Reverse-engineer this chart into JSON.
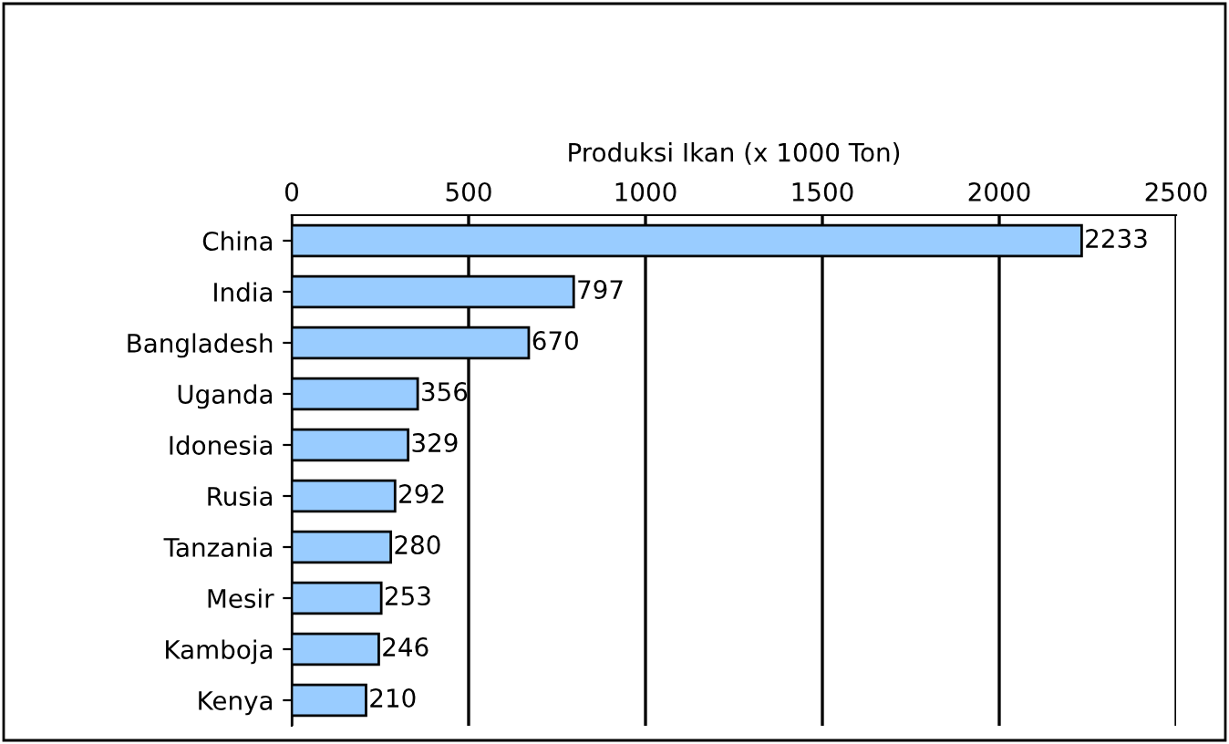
{
  "chart_data": {
    "type": "bar",
    "orientation": "horizontal",
    "xlabel": "Produksi Ikan (x 1000 Ton)",
    "categories": [
      "China",
      "India",
      "Bangladesh",
      "Uganda",
      "Idonesia",
      "Rusia",
      "Tanzania",
      "Mesir",
      "Kamboja",
      "Kenya"
    ],
    "values": [
      2233,
      797,
      670,
      356,
      329,
      292,
      280,
      253,
      246,
      210
    ],
    "color": "#99ccff",
    "xlim": [
      0,
      2500
    ],
    "xticks": [
      0,
      500,
      1000,
      1500,
      2000,
      2500
    ],
    "grid": "x",
    "data_labels": true,
    "legend": false
  }
}
